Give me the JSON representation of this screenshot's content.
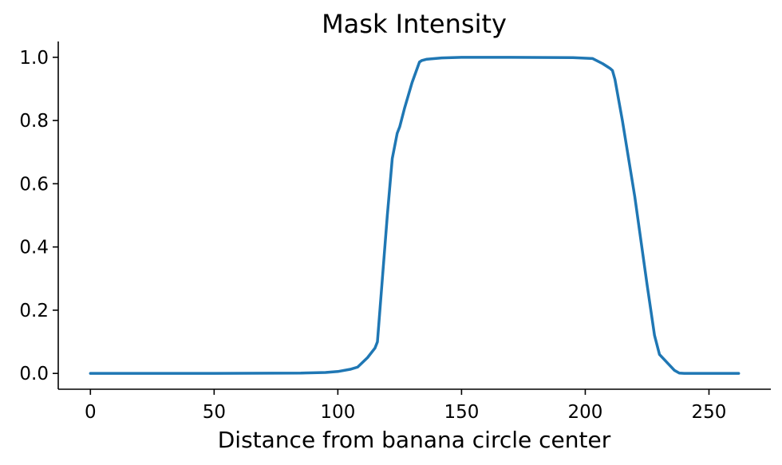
{
  "chart_data": {
    "type": "line",
    "title": "Mask Intensity",
    "xlabel": "Distance from banana circle center",
    "ylabel": "",
    "xlim": [
      -13,
      275
    ],
    "ylim": [
      -0.05,
      1.05
    ],
    "xticks": [
      0,
      50,
      100,
      150,
      200,
      250
    ],
    "xtick_labels": [
      "0",
      "50",
      "100",
      "150",
      "200",
      "250"
    ],
    "yticks": [
      0.0,
      0.2,
      0.4,
      0.6,
      0.8,
      1.0
    ],
    "ytick_labels": [
      "0.0",
      "0.2",
      "0.4",
      "0.6",
      "0.8",
      "1.0"
    ],
    "grid": false,
    "legend": "none",
    "spines": [
      "left",
      "bottom"
    ],
    "series": [
      {
        "color": "#1f77b4",
        "x": [
          0,
          50,
          85,
          90,
          95,
          100,
          105,
          108,
          112,
          115,
          116,
          118,
          120,
          122,
          124,
          125,
          127,
          130,
          133,
          134,
          136,
          142,
          150,
          170,
          195,
          203,
          207,
          210,
          211,
          212,
          215,
          220,
          225,
          228,
          230,
          233,
          236,
          238,
          240,
          250,
          262
        ],
        "y": [
          0.0,
          0.0,
          0.001,
          0.002,
          0.003,
          0.006,
          0.013,
          0.02,
          0.05,
          0.08,
          0.1,
          0.3,
          0.5,
          0.68,
          0.76,
          0.78,
          0.84,
          0.92,
          0.985,
          0.99,
          0.994,
          0.998,
          1.0,
          1.0,
          0.999,
          0.996,
          0.98,
          0.965,
          0.958,
          0.93,
          0.8,
          0.56,
          0.28,
          0.12,
          0.06,
          0.035,
          0.01,
          0.001,
          0.0,
          0.0,
          0.0
        ]
      }
    ]
  }
}
